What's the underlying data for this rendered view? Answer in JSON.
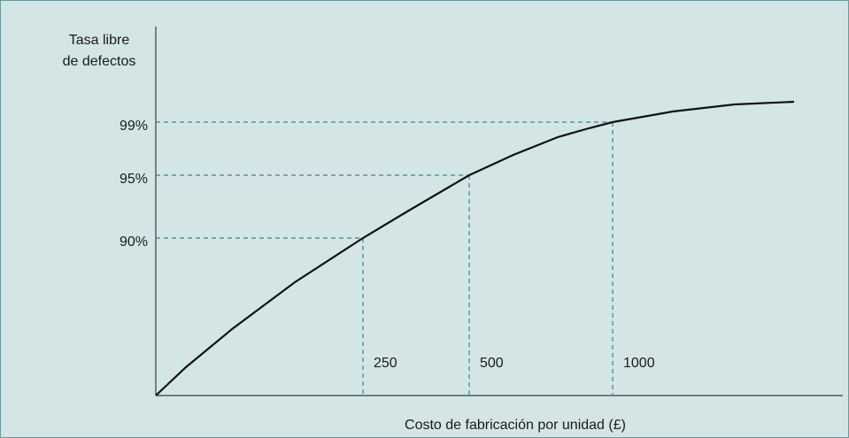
{
  "y_axis_label": [
    "Tasa libre",
    "de defectos"
  ],
  "x_axis_label": "Costo de fabricación por unidad (£)",
  "markers": [
    {
      "x_label": "250",
      "y_label": "90%"
    },
    {
      "x_label": "500",
      "y_label": "95%"
    },
    {
      "x_label": "1000",
      "y_label": "99%"
    }
  ]
}
